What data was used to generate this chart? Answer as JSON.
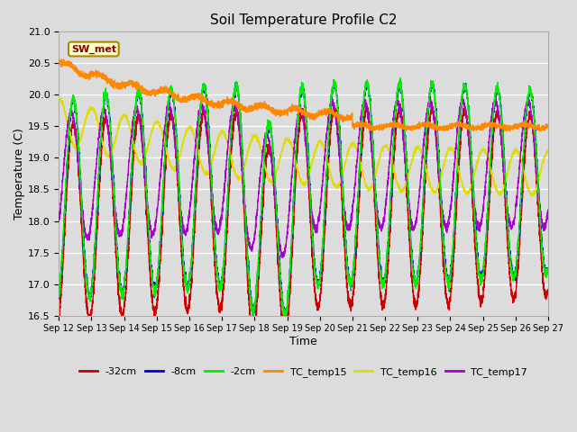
{
  "title": "Soil Temperature Profile C2",
  "xlabel": "Time",
  "ylabel": "Temperature (C)",
  "ylim": [
    16.5,
    21.0
  ],
  "background_color": "#dcdcdc",
  "plot_bg_color": "#dcdcdc",
  "grid_color": "#ffffff",
  "annotation_label": "SW_met",
  "annotation_bg": "#ffffcc",
  "annotation_fg": "#8b0000",
  "annotation_border": "#aa8800",
  "series": {
    "TC_temp15_color": "#ff8800",
    "TC_temp16_color": "#dddd00",
    "TC_temp17_color": "#aa00cc",
    "depth_2cm_color": "#00ee00",
    "depth_8cm_color": "#0000cc",
    "depth_32cm_color": "#cc0000"
  },
  "x_tick_labels": [
    "Sep 12",
    "Sep 13",
    "Sep 14",
    "Sep 15",
    "Sep 16",
    "Sep 17",
    "Sep 18",
    "Sep 19",
    "Sep 20",
    "Sep 21",
    "Sep 22",
    "Sep 23",
    "Sep 24",
    "Sep 25",
    "Sep 26",
    "Sep 27"
  ],
  "yticks": [
    16.5,
    17.0,
    17.5,
    18.0,
    18.5,
    19.0,
    19.5,
    20.0,
    20.5,
    21.0
  ],
  "legend_entries": [
    "-32cm",
    "-8cm",
    "-2cm",
    "TC_temp15",
    "TC_temp16",
    "TC_temp17"
  ],
  "legend_colors": [
    "#cc0000",
    "#0000cc",
    "#00ee00",
    "#ff8800",
    "#dddd00",
    "#aa00cc"
  ]
}
